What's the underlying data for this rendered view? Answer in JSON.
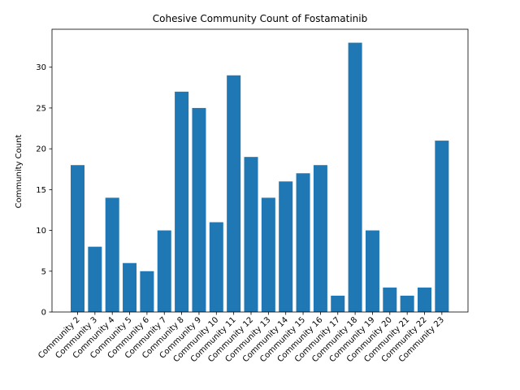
{
  "chart_data": {
    "type": "bar",
    "title": "Cohesive Community Count of Fostamatinib",
    "xlabel": "",
    "ylabel": "Community Count",
    "categories": [
      "Community 2",
      "Community 3",
      "Community 4",
      "Community 5",
      "Community 6",
      "Community 7",
      "Community 8",
      "Community 9",
      "Community 10",
      "Community 11",
      "Community 12",
      "Community 13",
      "Community 14",
      "Community 15",
      "Community 16",
      "Community 17",
      "Community 18",
      "Community 19",
      "Community 20",
      "Community 21",
      "Community 22",
      "Community 23"
    ],
    "values": [
      18,
      8,
      14,
      6,
      5,
      10,
      27,
      25,
      11,
      29,
      19,
      14,
      16,
      17,
      18,
      2,
      33,
      10,
      3,
      2,
      3,
      21
    ],
    "ylim": [
      0,
      34.65
    ],
    "yticks": [
      0,
      5,
      10,
      15,
      20,
      25,
      30
    ],
    "bar_color": "#1f77b4",
    "grid": false,
    "legend": "none"
  }
}
